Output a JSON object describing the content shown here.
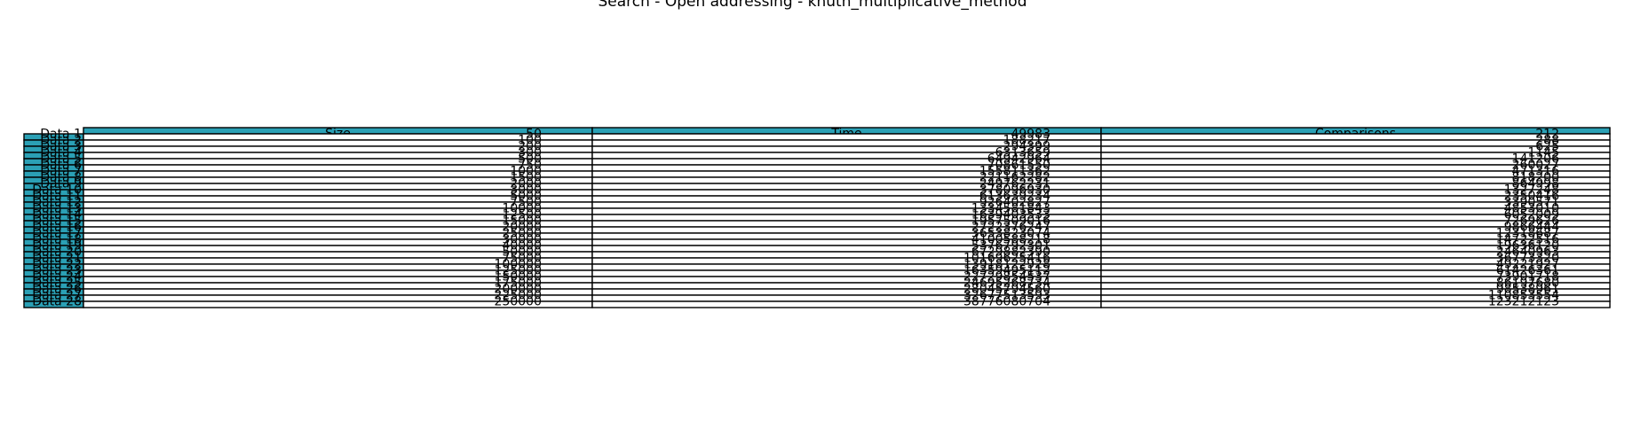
{
  "chart_data": {
    "type": "table",
    "title": "Search - Open addressing - knuth_multiplicative_method",
    "header_color": "#2ba0b5",
    "columns": [
      "Size",
      "Time",
      "Comparisons"
    ],
    "rows": [
      {
        "label": "Data 1",
        "values": [
          "50",
          "49983",
          "212"
        ]
      },
      {
        "label": "Data 2",
        "values": [
          "100",
          "188217",
          "288"
        ]
      },
      {
        "label": "Data 3",
        "values": [
          "200",
          "294399",
          "625"
        ]
      },
      {
        "label": "Data 4",
        "values": [
          "300",
          "6313659",
          "1145"
        ]
      },
      {
        "label": "Data 5",
        "values": [
          "500",
          "64942964",
          "141206"
        ]
      },
      {
        "label": "Data 6",
        "values": [
          "750",
          "70861550",
          "260027"
        ]
      },
      {
        "label": "Data 7",
        "values": [
          "1000",
          "155811362",
          "471316"
        ]
      },
      {
        "label": "Data 8",
        "values": [
          "1500",
          "221162282",
          "818200"
        ]
      },
      {
        "label": "Data 9",
        "values": [
          "2000",
          "249762231",
          "864998"
        ]
      },
      {
        "label": "Data 10",
        "values": [
          "3000",
          "378096930",
          "1327248"
        ]
      },
      {
        "label": "Data 11",
        "values": [
          "5000",
          "613639234",
          "2350416"
        ]
      },
      {
        "label": "Data 12",
        "values": [
          "7500",
          "926402827",
          "3390571"
        ]
      },
      {
        "label": "Data 13",
        "values": [
          "10000",
          "1334581843",
          "4853010"
        ]
      },
      {
        "label": "Data 14",
        "values": [
          "12500",
          "1639403533",
          "6052009"
        ]
      },
      {
        "label": "Data 15",
        "values": [
          "15000",
          "1957509016",
          "7269626"
        ]
      },
      {
        "label": "Data 16",
        "values": [
          "20000",
          "2722376247",
          "9866444"
        ]
      },
      {
        "label": "Data 17",
        "values": [
          "25000",
          "3653823074",
          "12318687"
        ]
      },
      {
        "label": "Data 18",
        "values": [
          "30000",
          "4100588218",
          "14722516"
        ]
      },
      {
        "label": "Data 19",
        "values": [
          "40000",
          "5376792301",
          "19636120"
        ]
      },
      {
        "label": "Data 20",
        "values": [
          "50000",
          "6729882390",
          "24640963"
        ]
      },
      {
        "label": "Data 21",
        "values": [
          "75000",
          "10169625416",
          "36773320"
        ]
      },
      {
        "label": "Data 22",
        "values": [
          "100000",
          "13918122928",
          "49221927"
        ]
      },
      {
        "label": "Data 23",
        "values": [
          "125000",
          "16359495112",
          "61426361"
        ]
      },
      {
        "label": "Data 24",
        "values": [
          "150000",
          "22729854537",
          "73901718"
        ]
      },
      {
        "label": "Data 25",
        "values": [
          "175000",
          "24695268734",
          "86197680"
        ]
      },
      {
        "label": "Data 26",
        "values": [
          "200000",
          "28045794560",
          "98538961"
        ]
      },
      {
        "label": "Data 27",
        "values": [
          "225000",
          "32677513593",
          "110853554"
        ]
      },
      {
        "label": "Data 28",
        "values": [
          "250000",
          "38776080704",
          "123212123"
        ]
      }
    ]
  }
}
